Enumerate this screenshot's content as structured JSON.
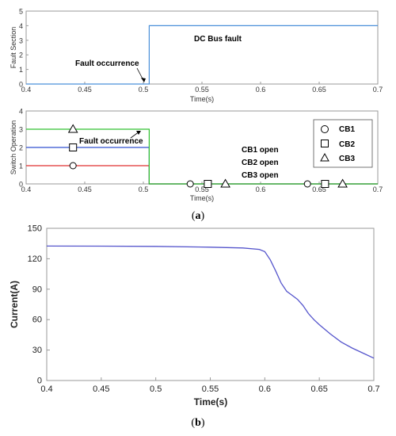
{
  "chart_data": [
    {
      "type": "line",
      "ylabel": "Fault Section",
      "xlabel": "Time(s)",
      "xlim": [
        0.4,
        0.7
      ],
      "ylim": [
        0,
        5
      ],
      "x_ticks": [
        "0.4",
        "0.45",
        "0.5",
        "0.55",
        "0.6",
        "0.65",
        "0.7"
      ],
      "y_ticks": [
        "0",
        "1",
        "2",
        "3",
        "4",
        "5"
      ],
      "grid": false,
      "series": [
        {
          "color": "#4a90d9",
          "points": [
            [
              0.4,
              0
            ],
            [
              0.505,
              0
            ],
            [
              0.505,
              4
            ],
            [
              0.7,
              4
            ]
          ]
        }
      ],
      "annotations": [
        {
          "text": "DC Bus fault",
          "x": 0.562,
          "y": 3.3
        },
        {
          "text": "Fault occurrence",
          "x": 0.468,
          "y": 1.1
        }
      ]
    },
    {
      "type": "line",
      "ylabel": "Switch Operation",
      "xlabel": "Time(s)",
      "xlim": [
        0.4,
        0.7
      ],
      "ylim": [
        0,
        4
      ],
      "x_ticks": [
        "0.4",
        "0.45",
        "0.5",
        "0.55",
        "0.6",
        "0.65",
        "0.7"
      ],
      "y_ticks": [
        "0",
        "1",
        "2",
        "3",
        "4"
      ],
      "grid": false,
      "series": [
        {
          "name": "CB1",
          "color": "#e03030",
          "marker": "circle",
          "points": [
            [
              0.4,
              1
            ],
            [
              0.505,
              1
            ],
            [
              0.505,
              0
            ],
            [
              0.7,
              0
            ]
          ],
          "marker_points": [
            [
              0.44,
              1
            ],
            [
              0.54,
              0
            ],
            [
              0.64,
              0
            ]
          ]
        },
        {
          "name": "CB2",
          "color": "#3050d0",
          "marker": "square",
          "points": [
            [
              0.4,
              2
            ],
            [
              0.505,
              2
            ],
            [
              0.505,
              0
            ],
            [
              0.7,
              0
            ]
          ],
          "marker_points": [
            [
              0.44,
              2
            ],
            [
              0.555,
              0
            ],
            [
              0.655,
              0
            ]
          ]
        },
        {
          "name": "CB3",
          "color": "#30c030",
          "marker": "triangle",
          "points": [
            [
              0.4,
              3
            ],
            [
              0.505,
              3
            ],
            [
              0.505,
              0
            ],
            [
              0.7,
              0
            ]
          ],
          "marker_points": [
            [
              0.44,
              3
            ],
            [
              0.57,
              0
            ],
            [
              0.67,
              0
            ]
          ]
        }
      ],
      "legend_position": "top-right",
      "annotations": [
        {
          "text": "Fault occurrence",
          "x": 0.467,
          "y": 2.35
        },
        {
          "text": "CB1 open",
          "x": 0.597,
          "y": 1.8
        },
        {
          "text": "CB2 open",
          "x": 0.597,
          "y": 1.1
        },
        {
          "text": "CB3 open",
          "x": 0.597,
          "y": 0.4
        }
      ]
    },
    {
      "type": "line",
      "xlabel": "Time(s)",
      "ylabel": "Current(A)",
      "xlim": [
        0.4,
        0.7
      ],
      "ylim": [
        0,
        150
      ],
      "x_ticks": [
        "0.4",
        "0.45",
        "0.5",
        "0.55",
        "0.6",
        "0.65",
        "0.7"
      ],
      "y_ticks": [
        "0",
        "30",
        "60",
        "90",
        "120",
        "150"
      ],
      "grid": false,
      "series": [
        {
          "color": "#5555cc",
          "points": [
            [
              0.4,
              132.5
            ],
            [
              0.45,
              132.4
            ],
            [
              0.5,
              132.2
            ],
            [
              0.55,
              131.4
            ],
            [
              0.58,
              130.6
            ],
            [
              0.595,
              129.2
            ],
            [
              0.6,
              127
            ],
            [
              0.605,
              119
            ],
            [
              0.61,
              108
            ],
            [
              0.615,
              96
            ],
            [
              0.62,
              88
            ],
            [
              0.625,
              84
            ],
            [
              0.63,
              80
            ],
            [
              0.635,
              74
            ],
            [
              0.64,
              66
            ],
            [
              0.645,
              60
            ],
            [
              0.65,
              55
            ],
            [
              0.66,
              46
            ],
            [
              0.67,
              38
            ],
            [
              0.68,
              32
            ],
            [
              0.69,
              27
            ],
            [
              0.7,
              22
            ]
          ]
        }
      ]
    }
  ],
  "panel_labels": {
    "a": "a",
    "b": "b"
  }
}
